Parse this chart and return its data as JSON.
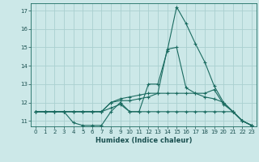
{
  "xlabel": "Humidex (Indice chaleur)",
  "bg_color": "#cce8e8",
  "grid_color": "#aad0d0",
  "line_color": "#1a6b60",
  "xlim": [
    -0.5,
    23.5
  ],
  "ylim": [
    10.7,
    17.4
  ],
  "yticks": [
    11,
    12,
    13,
    14,
    15,
    16,
    17
  ],
  "xticks": [
    0,
    1,
    2,
    3,
    4,
    5,
    6,
    7,
    8,
    9,
    10,
    11,
    12,
    13,
    14,
    15,
    16,
    17,
    18,
    19,
    20,
    21,
    22,
    23
  ],
  "series": [
    [
      11.5,
      11.5,
      11.5,
      11.5,
      10.9,
      10.75,
      10.75,
      10.75,
      11.5,
      12.0,
      11.5,
      11.5,
      13.0,
      13.0,
      14.8,
      17.2,
      16.3,
      15.2,
      14.2,
      12.9,
      12.0,
      11.5,
      11.0,
      10.75
    ],
    [
      11.5,
      11.5,
      11.5,
      11.5,
      11.5,
      11.5,
      11.5,
      11.5,
      12.0,
      12.2,
      12.3,
      12.4,
      12.5,
      12.5,
      12.5,
      12.5,
      12.5,
      12.5,
      12.5,
      12.7,
      11.9,
      11.5,
      11.0,
      10.75
    ],
    [
      11.5,
      11.5,
      11.5,
      11.5,
      11.5,
      11.5,
      11.5,
      11.5,
      11.7,
      11.9,
      11.5,
      11.5,
      11.5,
      11.5,
      11.5,
      11.5,
      11.5,
      11.5,
      11.5,
      11.5,
      11.5,
      11.5,
      11.0,
      10.75
    ],
    [
      11.5,
      11.5,
      11.5,
      11.5,
      11.5,
      11.5,
      11.5,
      11.5,
      12.0,
      12.1,
      12.1,
      12.2,
      12.3,
      12.5,
      14.9,
      15.0,
      12.8,
      12.5,
      12.3,
      12.2,
      12.0,
      11.5,
      11.0,
      10.75
    ]
  ],
  "xlabel_fontsize": 6.0,
  "tick_fontsize": 5.0,
  "xlabel_color": "#1a5050",
  "tick_color": "#1a5050"
}
